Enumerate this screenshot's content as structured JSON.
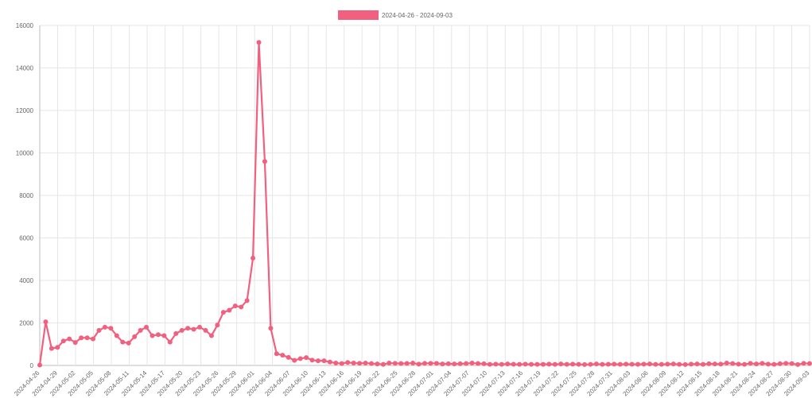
{
  "colors": {
    "series": "#f2607f",
    "grid": "#e6e6e6",
    "text": "#666666"
  },
  "chart_data": {
    "type": "line",
    "title": "",
    "xlabel": "",
    "ylabel": "",
    "ylim": [
      0,
      16000
    ],
    "yticks": [
      0,
      2000,
      4000,
      6000,
      8000,
      10000,
      12000,
      14000,
      16000
    ],
    "grid": true,
    "legend": "top-center",
    "series": [
      {
        "name": "2024-04-26 - 2024-09-03",
        "values": [
          20,
          2050,
          800,
          850,
          1150,
          1250,
          1080,
          1300,
          1300,
          1250,
          1650,
          1800,
          1750,
          1400,
          1100,
          1050,
          1350,
          1650,
          1800,
          1400,
          1450,
          1400,
          1100,
          1500,
          1650,
          1750,
          1700,
          1800,
          1650,
          1400,
          1900,
          2500,
          2600,
          2800,
          2750,
          3050,
          5050,
          15200,
          9600,
          1750,
          550,
          480,
          380,
          240,
          320,
          370,
          250,
          220,
          220,
          160,
          110,
          90,
          140,
          110,
          100,
          110,
          90,
          70,
          50,
          110,
          100,
          90,
          95,
          110,
          60,
          100,
          100,
          100,
          70,
          80,
          70,
          80,
          90,
          110,
          90,
          80,
          50,
          60,
          50,
          70,
          55,
          50,
          60,
          50,
          50,
          50,
          60,
          50,
          70,
          50,
          60,
          50,
          40,
          50,
          70,
          50,
          55,
          60,
          50,
          60,
          55,
          50,
          60,
          70,
          50,
          50,
          60,
          70,
          50,
          40,
          60,
          70,
          50,
          80,
          70,
          60,
          110,
          90,
          60,
          50,
          100,
          70,
          100,
          60,
          50,
          80,
          100,
          90,
          40,
          100,
          90
        ]
      }
    ],
    "x_labels": [
      "2024-04-26",
      "2024-04-29",
      "2024-05-02",
      "2024-05-05",
      "2024-05-08",
      "2024-05-11",
      "2024-05-14",
      "2024-05-17",
      "2024-05-20",
      "2024-05-23",
      "2024-05-26",
      "2024-05-29",
      "2024-06-01",
      "2024-06-04",
      "2024-06-07",
      "2024-06-10",
      "2024-06-13",
      "2024-06-16",
      "2024-06-19",
      "2024-06-22",
      "2024-06-25",
      "2024-06-28",
      "2024-07-01",
      "2024-07-04",
      "2024-07-07",
      "2024-07-10",
      "2024-07-13",
      "2024-07-16",
      "2024-07-19",
      "2024-07-22",
      "2024-07-25",
      "2024-07-28",
      "2024-07-31",
      "2024-08-03",
      "2024-08-06",
      "2024-08-09",
      "2024-08-12",
      "2024-08-15",
      "2024-08-18",
      "2024-08-21",
      "2024-08-24",
      "2024-08-27",
      "2024-08-30",
      "2024-09-03"
    ]
  }
}
